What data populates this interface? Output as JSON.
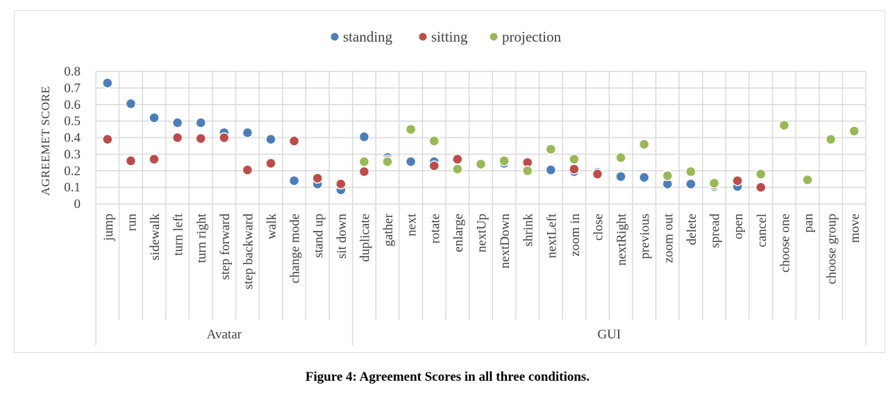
{
  "caption": "Figure 4: Agreement Scores in all three conditions.",
  "chart_data": {
    "type": "scatter",
    "title": "",
    "ylabel": "AGREEMET SCORE",
    "xlabel": "",
    "ylim": [
      0,
      0.8
    ],
    "yticks": [
      0,
      0.1,
      0.2,
      0.3,
      0.4,
      0.5,
      0.6,
      0.7,
      0.8
    ],
    "ytick_labels": [
      "0",
      "0.1",
      "0.2",
      "0.3",
      "0.4",
      "0.5",
      "0.6",
      "0.7",
      "0.8"
    ],
    "grid": true,
    "legend_position": "top-center",
    "categories": [
      "jump",
      "run",
      "sidewalk",
      "turn left",
      "turn right",
      "step forward",
      "step backward",
      "walk",
      "change mode",
      "stand up",
      "sit down",
      "duplicate",
      "gather",
      "next",
      "rotate",
      "enlarge",
      "nextUp",
      "nextDown",
      "shrink",
      "nextLeft",
      "zoom in",
      "close",
      "nextRight",
      "previous",
      "zoom out",
      "delete",
      "spread",
      "open",
      "cancel",
      "choose one",
      "pan",
      "choose group",
      "move"
    ],
    "groups": [
      {
        "name": "Avatar",
        "start": 0,
        "end": 10
      },
      {
        "name": "GUI",
        "start": 11,
        "end": 32
      }
    ],
    "series": [
      {
        "name": "standing",
        "color": "#4a7ebb",
        "values": [
          0.73,
          0.605,
          0.52,
          0.49,
          0.49,
          0.43,
          0.43,
          0.39,
          0.14,
          0.12,
          0.085,
          0.405,
          0.28,
          0.255,
          0.255,
          0.26,
          0.245,
          0.245,
          0.24,
          0.205,
          0.195,
          0.19,
          0.165,
          0.16,
          0.12,
          0.12,
          0.105,
          0.105,
          null,
          null,
          null,
          null,
          null
        ]
      },
      {
        "name": "sitting",
        "color": "#be4b48",
        "values": [
          0.39,
          0.26,
          0.27,
          0.4,
          0.395,
          0.4,
          0.205,
          0.245,
          0.38,
          0.155,
          0.12,
          0.195,
          0.265,
          null,
          0.23,
          0.27,
          0.245,
          0.26,
          0.25,
          null,
          0.21,
          0.18,
          null,
          null,
          0.175,
          null,
          0.115,
          0.14,
          0.1,
          null,
          null,
          null,
          null
        ]
      },
      {
        "name": "projection",
        "color": "#98b954",
        "values": [
          null,
          null,
          null,
          null,
          null,
          null,
          null,
          null,
          null,
          null,
          null,
          0.255,
          0.255,
          0.45,
          0.38,
          0.21,
          0.24,
          0.26,
          0.2,
          0.33,
          0.27,
          null,
          0.28,
          0.36,
          0.17,
          0.195,
          0.125,
          null,
          0.18,
          0.475,
          0.145,
          0.39,
          0.44
        ]
      }
    ]
  }
}
